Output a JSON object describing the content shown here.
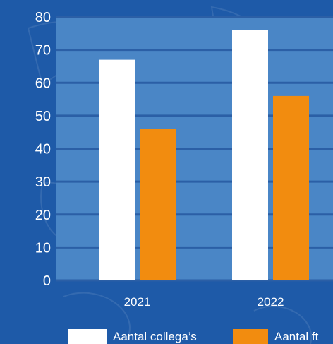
{
  "chart_data": {
    "type": "bar",
    "categories": [
      "2021",
      "2022"
    ],
    "series": [
      {
        "name": "Aantal collega’s",
        "values": [
          67,
          76
        ],
        "color": "#ffffff"
      },
      {
        "name": "Aantal ft",
        "values": [
          46,
          56
        ],
        "color": "#f28c0f"
      }
    ],
    "ylim": [
      0,
      80
    ],
    "yticks": [
      "0",
      "10",
      "20",
      "30",
      "40",
      "50",
      "60",
      "70",
      "80"
    ],
    "grid": true,
    "legend_position": "bottom",
    "colors": {
      "background": "#1e5aa8",
      "plot_area": "#4a86c6",
      "gridline": "#2b5fa6"
    }
  }
}
